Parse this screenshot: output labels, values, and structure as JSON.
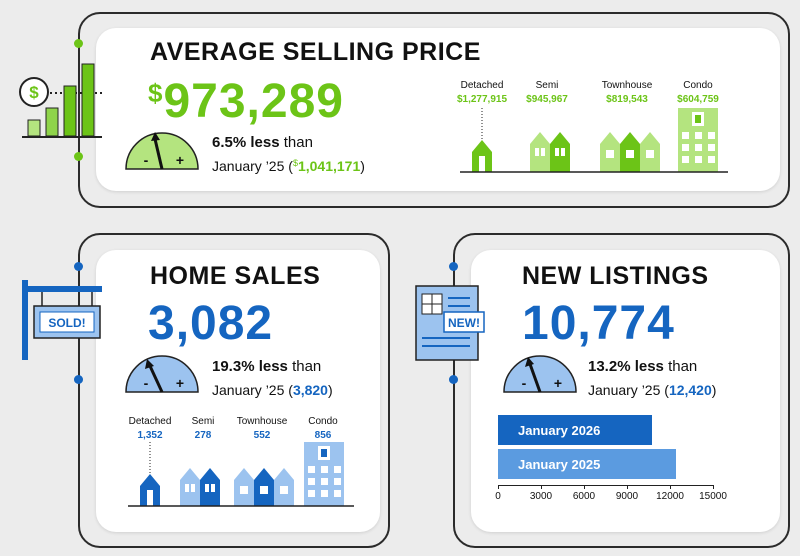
{
  "average_selling_price": {
    "title": "AVERAGE SELLING PRICE",
    "currency": "$",
    "value": "973,289",
    "change": "6.5% less",
    "change_suffix": "than",
    "previous_label": "January ’25 (",
    "previous_value": "1,041,171",
    "previous_close": ")",
    "types": [
      {
        "name": "Detached",
        "value": "$1,277,915"
      },
      {
        "name": "Semi",
        "value": "$945,967"
      },
      {
        "name": "Townhouse",
        "value": "$819,543"
      },
      {
        "name": "Condo",
        "value": "$604,759"
      }
    ],
    "icon": "bar-growth-icon",
    "accent": "#6cc417"
  },
  "home_sales": {
    "title": "HOME SALES",
    "value": "3,082",
    "change": "19.3% less",
    "change_suffix": "than",
    "previous_label": "January ’25 (",
    "previous_value": "3,820",
    "previous_close": ")",
    "sign_text": "SOLD!",
    "types": [
      {
        "name": "Detached",
        "value": "1,352"
      },
      {
        "name": "Semi",
        "value": "278"
      },
      {
        "name": "Townhouse",
        "value": "552"
      },
      {
        "name": "Condo",
        "value": "856"
      }
    ],
    "icon": "sold-sign-icon",
    "accent": "#1565c0"
  },
  "new_listings": {
    "title": "NEW LISTINGS",
    "value": "10,774",
    "change": "13.2% less",
    "change_suffix": "than",
    "previous_label": "January ’25 (",
    "previous_value": "12,420",
    "previous_close": ")",
    "badge_text": "NEW!",
    "icon": "new-listing-document-icon",
    "accent": "#1565c0"
  },
  "gauge": {
    "minus": "-",
    "plus": "+"
  },
  "chart_data": {
    "type": "bar",
    "orientation": "horizontal",
    "categories": [
      "January 2026",
      "January 2025"
    ],
    "values": [
      10774,
      12420
    ],
    "xlim": [
      0,
      15000
    ],
    "xticks": [
      "0",
      "3000",
      "6000",
      "9000",
      "12000",
      "15000"
    ],
    "colors": [
      "#1565c0",
      "#5b9be0"
    ]
  }
}
